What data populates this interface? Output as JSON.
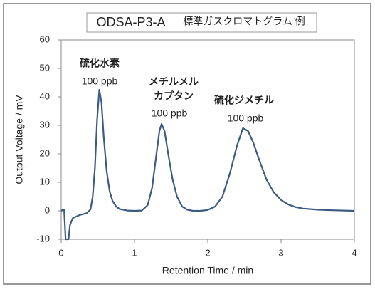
{
  "chart_data": {
    "type": "line",
    "title": "ODSA-P3-A",
    "subtitle": "標準ガスクロマトグラム 例",
    "xlabel": "Retention Time / min",
    "ylabel": "Output Voltage / mV",
    "annotations": [
      "硫化水素",
      "100 ppb",
      "メチルメル",
      "カプタン",
      "100 ppb",
      "硫化ジメチル",
      "100 ppb"
    ],
    "xlim": [
      0,
      4
    ],
    "xticks": [
      0,
      1,
      2,
      3,
      4
    ],
    "ylim": [
      -10,
      60
    ],
    "yticks": [
      -10,
      0,
      10,
      20,
      30,
      40,
      50,
      60
    ],
    "grid": false,
    "series": [
      {
        "color": "#3b5b82",
        "x": [
          0,
          0.02,
          0.04,
          0.06,
          0.1,
          0.12,
          0.16,
          0.25,
          0.35,
          0.4,
          0.43,
          0.46,
          0.49,
          0.52,
          0.55,
          0.58,
          0.62,
          0.66,
          0.7,
          0.75,
          0.8,
          0.9,
          1.0,
          1.1,
          1.18,
          1.24,
          1.3,
          1.34,
          1.37,
          1.41,
          1.46,
          1.52,
          1.58,
          1.65,
          1.72,
          1.8,
          1.9,
          2.0,
          2.1,
          2.2,
          2.3,
          2.4,
          2.48,
          2.55,
          2.62,
          2.7,
          2.8,
          2.9,
          3.0,
          3.1,
          3.2,
          3.3,
          3.5,
          3.7,
          4.0
        ],
        "values": [
          0,
          0.3,
          0.4,
          -10,
          -10,
          -5,
          -2.5,
          -1.5,
          -0.8,
          0.5,
          5,
          15,
          32,
          42.5,
          38,
          26,
          14,
          7,
          3.5,
          1.5,
          0.6,
          0.1,
          0,
          0.1,
          2,
          8,
          20,
          28,
          30.5,
          28,
          20,
          11,
          5,
          1.5,
          0.4,
          0,
          0,
          0.3,
          1.5,
          5,
          13,
          23,
          29,
          28,
          24,
          18,
          11,
          6.5,
          3.8,
          2.2,
          1.3,
          0.8,
          0.4,
          0.2,
          0
        ]
      }
    ]
  }
}
